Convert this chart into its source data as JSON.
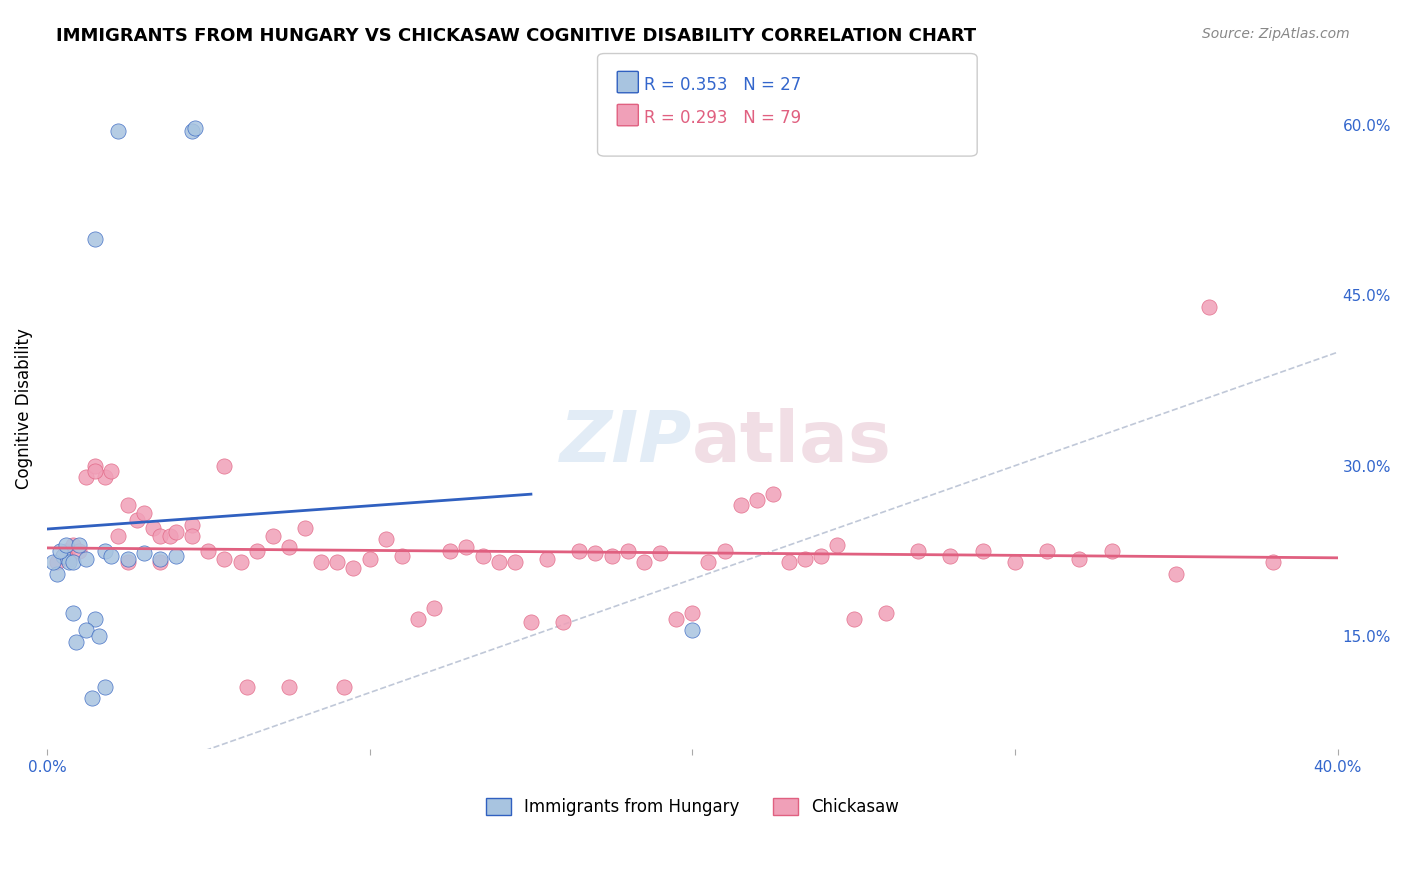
{
  "title": "IMMIGRANTS FROM HUNGARY VS CHICKASAW COGNITIVE DISABILITY CORRELATION CHART",
  "source": "Source: ZipAtlas.com",
  "ylabel": "Cognitive Disability",
  "right_yticks": [
    15.0,
    30.0,
    45.0,
    60.0
  ],
  "xlim": [
    0.0,
    0.4
  ],
  "ylim": [
    0.05,
    0.65
  ],
  "blue_R": 0.353,
  "blue_N": 27,
  "pink_R": 0.293,
  "pink_N": 79,
  "blue_color": "#a8c4e0",
  "pink_color": "#f0a0b8",
  "blue_line_color": "#3060c0",
  "pink_line_color": "#e06080",
  "diagonal_color": "#c0c8d8",
  "blue_scatter_x": [
    0.022,
    0.015,
    0.045,
    0.046,
    0.003,
    0.005,
    0.007,
    0.002,
    0.008,
    0.004,
    0.006,
    0.01,
    0.012,
    0.018,
    0.02,
    0.025,
    0.03,
    0.035,
    0.04,
    0.008,
    0.015,
    0.012,
    0.2,
    0.018,
    0.009,
    0.016,
    0.014
  ],
  "blue_scatter_y": [
    0.595,
    0.5,
    0.595,
    0.598,
    0.205,
    0.22,
    0.215,
    0.215,
    0.215,
    0.225,
    0.23,
    0.23,
    0.218,
    0.225,
    0.22,
    0.218,
    0.223,
    0.218,
    0.22,
    0.17,
    0.165,
    0.155,
    0.155,
    0.105,
    0.145,
    0.15,
    0.095
  ],
  "pink_scatter_x": [
    0.003,
    0.005,
    0.007,
    0.006,
    0.008,
    0.01,
    0.012,
    0.015,
    0.018,
    0.02,
    0.022,
    0.025,
    0.028,
    0.03,
    0.033,
    0.035,
    0.038,
    0.04,
    0.045,
    0.05,
    0.055,
    0.06,
    0.065,
    0.07,
    0.075,
    0.08,
    0.085,
    0.09,
    0.095,
    0.1,
    0.105,
    0.11,
    0.115,
    0.12,
    0.125,
    0.13,
    0.135,
    0.14,
    0.145,
    0.15,
    0.155,
    0.16,
    0.165,
    0.17,
    0.175,
    0.18,
    0.185,
    0.19,
    0.195,
    0.2,
    0.205,
    0.21,
    0.215,
    0.22,
    0.225,
    0.23,
    0.235,
    0.24,
    0.245,
    0.25,
    0.26,
    0.27,
    0.28,
    0.29,
    0.3,
    0.31,
    0.32,
    0.33,
    0.35,
    0.36,
    0.38,
    0.015,
    0.025,
    0.035,
    0.045,
    0.055,
    0.062,
    0.075,
    0.092
  ],
  "pink_scatter_y": [
    0.215,
    0.22,
    0.218,
    0.225,
    0.23,
    0.225,
    0.29,
    0.3,
    0.29,
    0.295,
    0.238,
    0.265,
    0.252,
    0.258,
    0.245,
    0.238,
    0.238,
    0.242,
    0.248,
    0.225,
    0.218,
    0.215,
    0.225,
    0.238,
    0.228,
    0.245,
    0.215,
    0.215,
    0.21,
    0.218,
    0.235,
    0.22,
    0.165,
    0.175,
    0.225,
    0.228,
    0.22,
    0.215,
    0.215,
    0.162,
    0.218,
    0.162,
    0.225,
    0.223,
    0.22,
    0.225,
    0.215,
    0.223,
    0.165,
    0.17,
    0.215,
    0.225,
    0.265,
    0.27,
    0.275,
    0.215,
    0.218,
    0.22,
    0.23,
    0.165,
    0.17,
    0.225,
    0.22,
    0.225,
    0.215,
    0.225,
    0.218,
    0.225,
    0.205,
    0.44,
    0.215,
    0.295,
    0.215,
    0.215,
    0.238,
    0.3,
    0.105,
    0.105,
    0.105
  ]
}
